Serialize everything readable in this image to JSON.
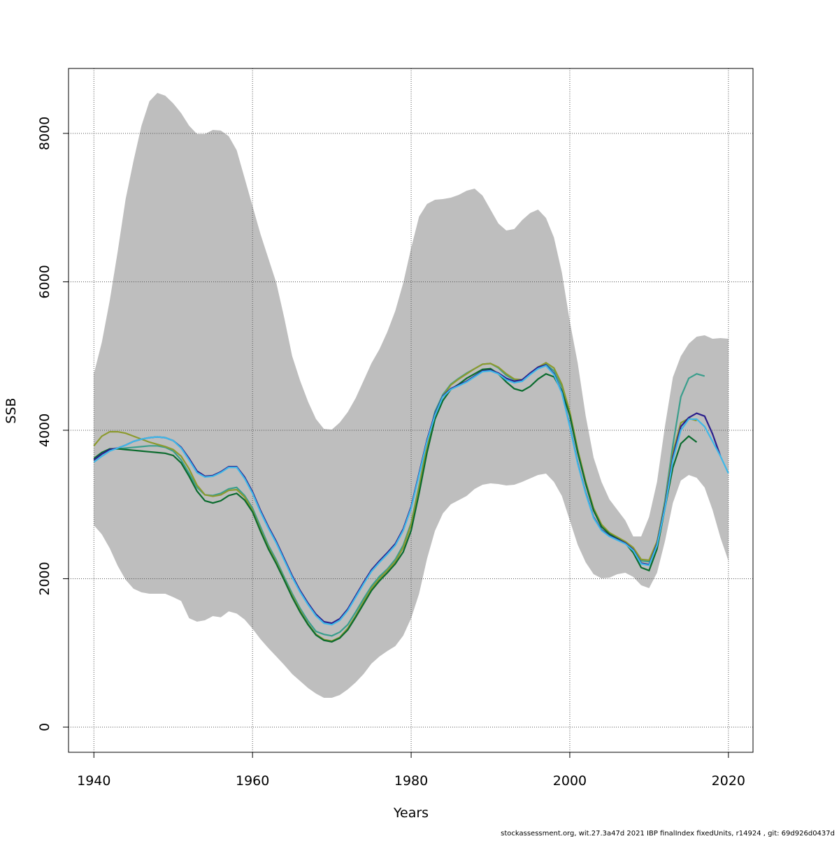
{
  "chart_data": {
    "type": "line",
    "xlabel": "Years",
    "ylabel": "SSB",
    "footnote": "stockassessment.org, wit.27.3a47d 2021 IBP finalIndex fixedUnits, r14924 , git: 69d926d0437d",
    "xlim": [
      1936.8,
      2023.1
    ],
    "ylim": [
      -339,
      8875
    ],
    "xticks": [
      1940,
      1960,
      1980,
      2000,
      2020
    ],
    "yticks": [
      0,
      2000,
      4000,
      6000,
      8000
    ],
    "grid": true,
    "x": [
      1940,
      1941,
      1942,
      1943,
      1944,
      1945,
      1946,
      1947,
      1948,
      1949,
      1950,
      1951,
      1952,
      1953,
      1954,
      1955,
      1956,
      1957,
      1958,
      1959,
      1960,
      1961,
      1962,
      1963,
      1964,
      1965,
      1966,
      1967,
      1968,
      1969,
      1970,
      1971,
      1972,
      1973,
      1974,
      1975,
      1976,
      1977,
      1978,
      1979,
      1980,
      1981,
      1982,
      1983,
      1984,
      1985,
      1986,
      1987,
      1988,
      1989,
      1990,
      1991,
      1992,
      1993,
      1994,
      1995,
      1996,
      1997,
      1998,
      1999,
      2000,
      2001,
      2002,
      2003,
      2004,
      2005,
      2006,
      2007,
      2008,
      2009,
      2010,
      2011,
      2012,
      2013,
      2014,
      2015,
      2016,
      2017,
      2018,
      2019,
      2020
    ],
    "band": {
      "color": "#bebebe",
      "upper": [
        4762,
        5186,
        5750,
        6409,
        7115,
        7633,
        8104,
        8433,
        8546,
        8508,
        8405,
        8273,
        8104,
        7991,
        7991,
        8047,
        8038,
        7962,
        7774,
        7398,
        7021,
        6645,
        6315,
        5986,
        5515,
        4998,
        4668,
        4386,
        4151,
        4019,
        4009,
        4104,
        4245,
        4433,
        4668,
        4904,
        5092,
        5327,
        5609,
        5986,
        6456,
        6880,
        7049,
        7106,
        7115,
        7134,
        7172,
        7228,
        7256,
        7162,
        6974,
        6786,
        6692,
        6711,
        6833,
        6927,
        6974,
        6861,
        6598,
        6127,
        5468,
        4904,
        4198,
        3633,
        3304,
        3068,
        2927,
        2786,
        2569,
        2569,
        2833,
        3304,
        4056,
        4715,
        4998,
        5167,
        5261,
        5280,
        5233,
        5242,
        5233
      ],
      "lower": [
        2720,
        2598,
        2409,
        2174,
        1986,
        1864,
        1816,
        1798,
        1798,
        1798,
        1751,
        1700,
        1468,
        1421,
        1440,
        1496,
        1480,
        1560,
        1530,
        1450,
        1327,
        1186,
        1064,
        951,
        838,
        715,
        621,
        527,
        452,
        395,
        395,
        433,
        508,
        602,
        715,
        856,
        951,
        1026,
        1092,
        1233,
        1468,
        1798,
        2268,
        2645,
        2880,
        3002,
        3059,
        3115,
        3209,
        3266,
        3285,
        3275,
        3256,
        3266,
        3304,
        3351,
        3398,
        3416,
        3304,
        3115,
        2786,
        2456,
        2221,
        2061,
        2005,
        2014,
        2061,
        2080,
        2024,
        1911,
        1873,
        2080,
        2504,
        3021,
        3322,
        3398,
        3360,
        3228,
        2927,
        2551,
        2240
      ]
    },
    "series": [
      {
        "color": "#3a9e8c",
        "values": [
          3600,
          3680,
          3740,
          3750,
          3760,
          3770,
          3780,
          3790,
          3790,
          3770,
          3720,
          3600,
          3420,
          3230,
          3130,
          3120,
          3150,
          3210,
          3230,
          3120,
          2950,
          2700,
          2450,
          2250,
          2020,
          1800,
          1600,
          1430,
          1290,
          1250,
          1230,
          1280,
          1380,
          1550,
          1730,
          1900,
          2030,
          2130,
          2260,
          2450,
          2750,
          3250,
          3800,
          4250,
          4480,
          4620,
          4700,
          4770,
          4830,
          4890,
          4900,
          4840,
          4740,
          4680,
          4680,
          4760,
          4840,
          4890,
          4800,
          4580,
          4200,
          3700,
          3280,
          2920,
          2700,
          2600,
          2540,
          2480,
          2400,
          2240,
          2230,
          2480,
          3050,
          3800,
          4450,
          4700,
          4760,
          4730,
          null,
          null,
          null
        ]
      },
      {
        "color": "#8c9a2e",
        "values": [
          3790,
          3920,
          3980,
          3980,
          3960,
          3920,
          3880,
          3840,
          3810,
          3780,
          3740,
          3650,
          3480,
          3260,
          3130,
          3110,
          3130,
          3190,
          3200,
          3100,
          2920,
          2660,
          2420,
          2220,
          1990,
          1770,
          1570,
          1390,
          1250,
          1180,
          1160,
          1210,
          1330,
          1500,
          1690,
          1870,
          2000,
          2110,
          2230,
          2420,
          2730,
          3230,
          3780,
          4220,
          4460,
          4610,
          4690,
          4760,
          4830,
          4890,
          4900,
          4850,
          4760,
          4690,
          4680,
          4760,
          4850,
          4910,
          4840,
          4620,
          4250,
          3740,
          3310,
          2950,
          2730,
          2620,
          2560,
          2500,
          2420,
          2260,
          2250,
          2500,
          3010,
          3700,
          4100,
          4160,
          4130,
          null,
          null,
          null,
          null
        ]
      },
      {
        "color": "#0b6b2e",
        "values": [
          3620,
          3700,
          3750,
          3750,
          3740,
          3730,
          3720,
          3710,
          3700,
          3690,
          3660,
          3560,
          3380,
          3180,
          3050,
          3020,
          3050,
          3120,
          3150,
          3060,
          2900,
          2640,
          2400,
          2200,
          1980,
          1750,
          1550,
          1380,
          1240,
          1170,
          1150,
          1200,
          1310,
          1480,
          1660,
          1840,
          1970,
          2080,
          2200,
          2360,
          2650,
          3150,
          3700,
          4150,
          4400,
          4550,
          4620,
          4700,
          4760,
          4820,
          4830,
          4760,
          4650,
          4560,
          4530,
          4590,
          4690,
          4760,
          4720,
          4530,
          4200,
          3700,
          3280,
          2920,
          2700,
          2600,
          2540,
          2480,
          2350,
          2150,
          2110,
          2400,
          2950,
          3500,
          3820,
          3920,
          3840,
          null,
          null,
          null,
          null
        ]
      },
      {
        "color": "#2a1e8c",
        "values": [
          3600,
          3680,
          3740,
          3760,
          3800,
          3850,
          3880,
          3900,
          3910,
          3900,
          3860,
          3770,
          3620,
          3450,
          3380,
          3390,
          3440,
          3510,
          3510,
          3370,
          3170,
          2920,
          2700,
          2500,
          2270,
          2040,
          1840,
          1670,
          1520,
          1420,
          1400,
          1460,
          1590,
          1770,
          1950,
          2120,
          2240,
          2350,
          2470,
          2670,
          2970,
          3420,
          3870,
          4220,
          4460,
          4560,
          4610,
          4660,
          4730,
          4800,
          4810,
          4770,
          4700,
          4660,
          4680,
          4770,
          4850,
          4880,
          4760,
          4510,
          4060,
          3560,
          3160,
          2830,
          2660,
          2580,
          2530,
          2480,
          2390,
          2210,
          2190,
          2470,
          2980,
          3640,
          4050,
          4170,
          4230,
          4190,
          3950,
          3650,
          null
        ]
      },
      {
        "color": "#3fb8e8",
        "values": [
          3570,
          3650,
          3720,
          3760,
          3800,
          3850,
          3880,
          3900,
          3910,
          3900,
          3860,
          3760,
          3600,
          3430,
          3370,
          3380,
          3430,
          3500,
          3500,
          3350,
          3150,
          2900,
          2680,
          2480,
          2250,
          2020,
          1820,
          1650,
          1500,
          1400,
          1380,
          1440,
          1570,
          1750,
          1930,
          2100,
          2220,
          2330,
          2450,
          2650,
          2950,
          3400,
          3850,
          4200,
          4450,
          4550,
          4600,
          4650,
          4720,
          4790,
          4800,
          4760,
          4680,
          4640,
          4660,
          4750,
          4830,
          4870,
          4750,
          4500,
          4050,
          3550,
          3150,
          2820,
          2650,
          2570,
          2520,
          2470,
          2380,
          2200,
          2180,
          2450,
          2950,
          3600,
          4000,
          4150,
          4150,
          4050,
          3850,
          3650,
          3420
        ]
      }
    ]
  }
}
